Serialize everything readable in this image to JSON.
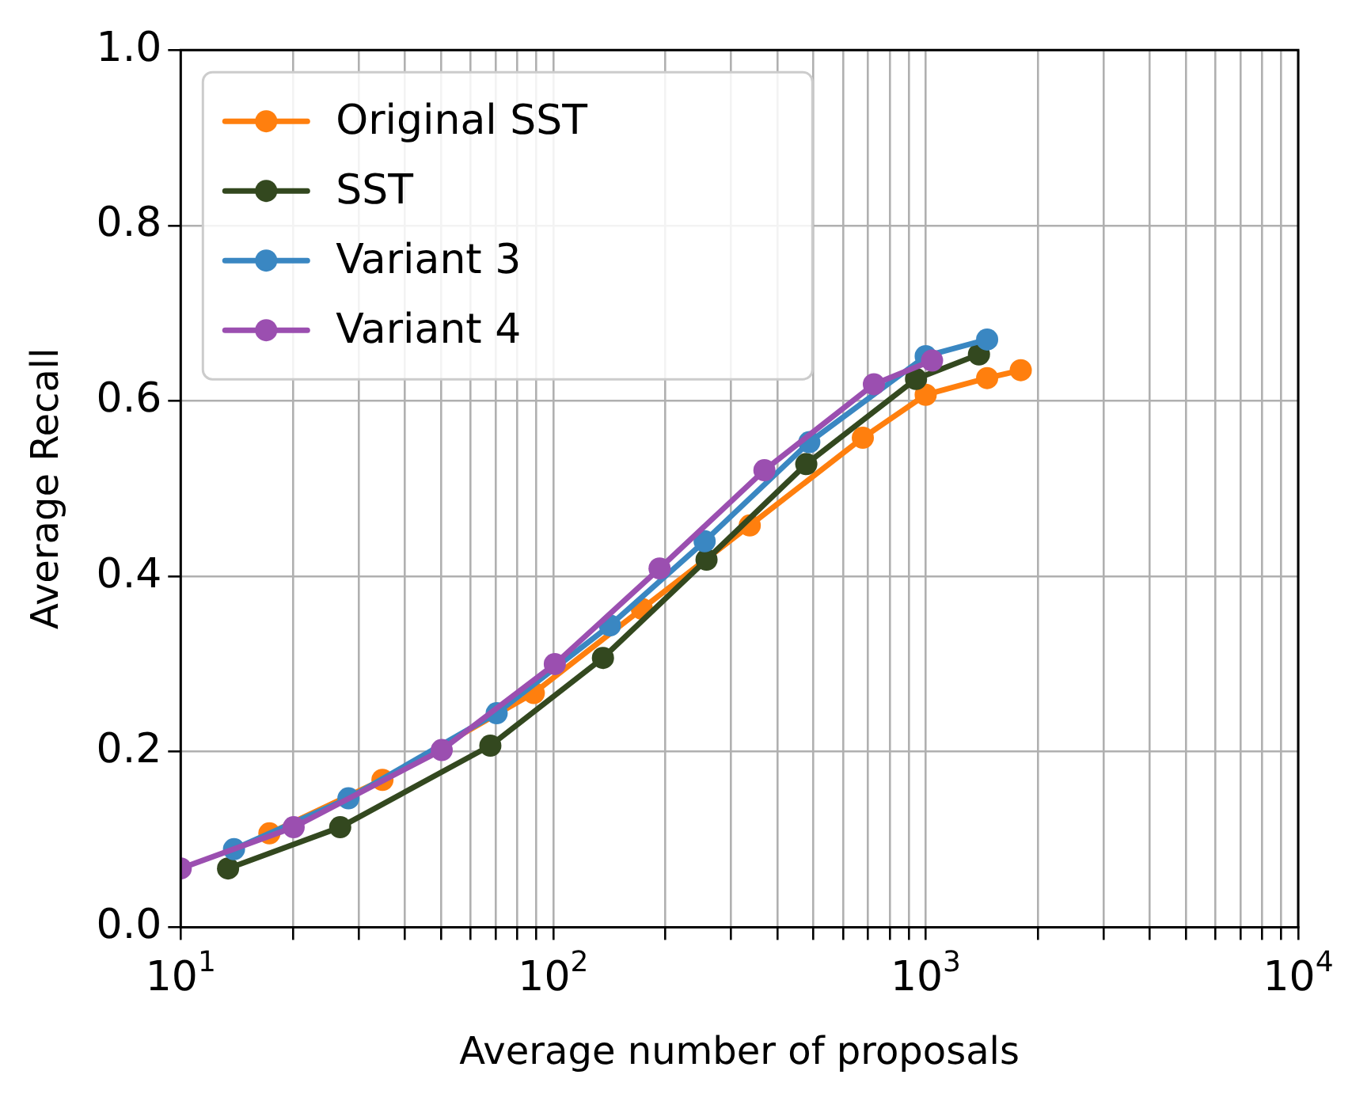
{
  "chart_data": {
    "type": "line",
    "xlabel": "Average number of proposals",
    "ylabel": "Average Recall",
    "log": "x",
    "grid": true,
    "legend": "top left",
    "marker": "circle",
    "line_style": "solid",
    "xlim": [
      10,
      10000
    ],
    "xticks": [
      {
        "value": 10,
        "label": "10$^{1}$"
      },
      {
        "value": 20,
        "label": null
      },
      {
        "value": 30,
        "label": null
      },
      {
        "value": 40,
        "label": null
      },
      {
        "value": 50,
        "label": null
      },
      {
        "value": 60,
        "label": null
      },
      {
        "value": 70,
        "label": null
      },
      {
        "value": 80,
        "label": null
      },
      {
        "value": 90,
        "label": null
      },
      {
        "value": 100,
        "label": "10$^{2}$"
      },
      {
        "value": 200,
        "label": null
      },
      {
        "value": 300,
        "label": null
      },
      {
        "value": 400,
        "label": null
      },
      {
        "value": 500,
        "label": null
      },
      {
        "value": 600,
        "label": null
      },
      {
        "value": 700,
        "label": null
      },
      {
        "value": 800,
        "label": null
      },
      {
        "value": 900,
        "label": null
      },
      {
        "value": 1000,
        "label": "10$^{3}$"
      },
      {
        "value": 2000,
        "label": null
      },
      {
        "value": 3000,
        "label": null
      },
      {
        "value": 4000,
        "label": null
      },
      {
        "value": 5000,
        "label": null
      },
      {
        "value": 6000,
        "label": null
      },
      {
        "value": 7000,
        "label": null
      },
      {
        "value": 8000,
        "label": null
      },
      {
        "value": 9000,
        "label": null
      },
      {
        "value": 10000,
        "label": "10$^{4}$"
      }
    ],
    "ylim": [
      0,
      1
    ],
    "yticks": [
      {
        "value": 0,
        "label": "0.0"
      },
      {
        "value": 0.2,
        "label": "0.2"
      },
      {
        "value": 0.4,
        "label": "0.4"
      },
      {
        "value": 0.6,
        "label": "0.6"
      },
      {
        "value": 0.8,
        "label": "0.8"
      },
      {
        "value": 1,
        "label": "1.0"
      }
    ],
    "series": [
      {
        "name": "Original SST",
        "color": "#ff7f0e",
        "x": [
          17.3,
          34.8,
          88.7,
          173,
          337,
          678,
          1000,
          1462,
          1800
        ],
        "values": [
          0.107,
          0.168,
          0.267,
          0.363,
          0.458,
          0.558,
          0.607,
          0.626,
          0.635
        ]
      },
      {
        "name": "SST",
        "color": "#33481f",
        "x": [
          13.4,
          26.8,
          67.8,
          136,
          258,
          478,
          942,
          1390
        ],
        "values": [
          0.067,
          0.114,
          0.207,
          0.307,
          0.419,
          0.528,
          0.625,
          0.653
        ]
      },
      {
        "name": "Variant 3",
        "color": "#3a87c2",
        "x": [
          13.9,
          28.2,
          70.5,
          142,
          255,
          487,
          1000,
          1462
        ],
        "values": [
          0.089,
          0.147,
          0.244,
          0.344,
          0.44,
          0.553,
          0.651,
          0.67
        ]
      },
      {
        "name": "Variant 4",
        "color": "#9b4fb0",
        "x": [
          10,
          20.1,
          50.2,
          101,
          193,
          369,
          726,
          1040
        ],
        "values": [
          0.067,
          0.114,
          0.202,
          0.3,
          0.409,
          0.521,
          0.619,
          0.646
        ]
      }
    ]
  }
}
